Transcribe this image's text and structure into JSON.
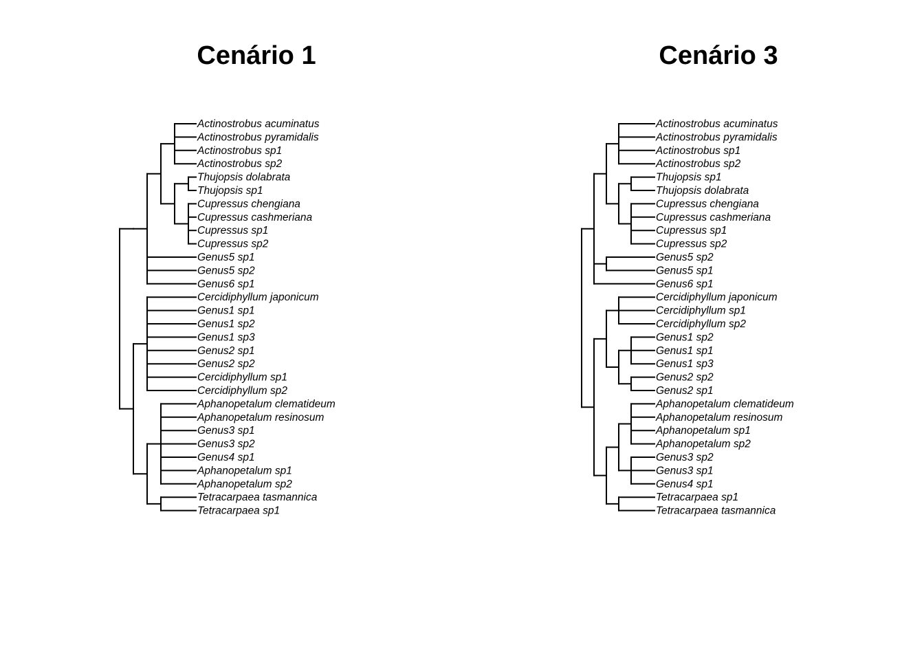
{
  "panels": [
    {
      "title": "Cenário 1",
      "tree": [
        [
          [
            [
              [
                "Actinostrobus acuminatus",
                "Actinostrobus pyramidalis",
                "Actinostrobus sp1",
                "Actinostrobus sp2"
              ],
              [
                [
                  "Thujopsis dolabrata",
                  "Thujopsis sp1"
                ],
                [
                  "Cupressus chengiana",
                  "Cupressus cashmeriana",
                  "Cupressus sp1",
                  "Cupressus sp2"
                ]
              ]
            ],
            "Genus5 sp1",
            "Genus5 sp2",
            "Genus6 sp1"
          ]
        ],
        [
          [
            "Cercidiphyllum japonicum",
            "Genus1 sp1",
            "Genus1 sp2",
            "Genus1 sp3",
            "Genus2 sp1",
            "Genus2 sp2",
            "Cercidiphyllum sp1",
            "Cercidiphyllum sp2"
          ],
          [
            [
              "Aphanopetalum clematideum",
              "Aphanopetalum resinosum",
              "Genus3 sp1",
              "Genus3 sp2",
              "Genus4 sp1",
              "Aphanopetalum sp1",
              "Aphanopetalum sp2"
            ],
            [
              "Tetracarpaea tasmannica",
              "Tetracarpaea sp1"
            ]
          ]
        ]
      ]
    },
    {
      "title": "Cenário 3",
      "tree": [
        [
          [
            [
              "Actinostrobus acuminatus",
              "Actinostrobus pyramidalis",
              "Actinostrobus sp1",
              "Actinostrobus sp2"
            ],
            [
              [
                "Thujopsis sp1",
                "Thujopsis dolabrata"
              ],
              [
                "Cupressus chengiana",
                "Cupressus cashmeriana",
                "Cupressus sp1",
                "Cupressus sp2"
              ]
            ]
          ],
          [
            "Genus5 sp2",
            "Genus5 sp1"
          ],
          "Genus6 sp1"
        ],
        [
          [
            [
              "Cercidiphyllum japonicum",
              "Cercidiphyllum sp1",
              "Cercidiphyllum sp2"
            ],
            [
              [
                "Genus1 sp2",
                "Genus1 sp1",
                "Genus1 sp3"
              ],
              [
                "Genus2 sp2",
                "Genus2 sp1"
              ]
            ]
          ],
          [
            [
              [
                "Aphanopetalum clematideum",
                "Aphanopetalum resinosum",
                "Aphanopetalum sp1",
                "Aphanopetalum sp2"
              ],
              [
                "Genus3 sp2",
                "Genus3 sp1",
                "Genus4 sp1"
              ]
            ],
            [
              "Tetracarpaea sp1",
              "Tetracarpaea tasmannica"
            ]
          ]
        ]
      ]
    }
  ]
}
